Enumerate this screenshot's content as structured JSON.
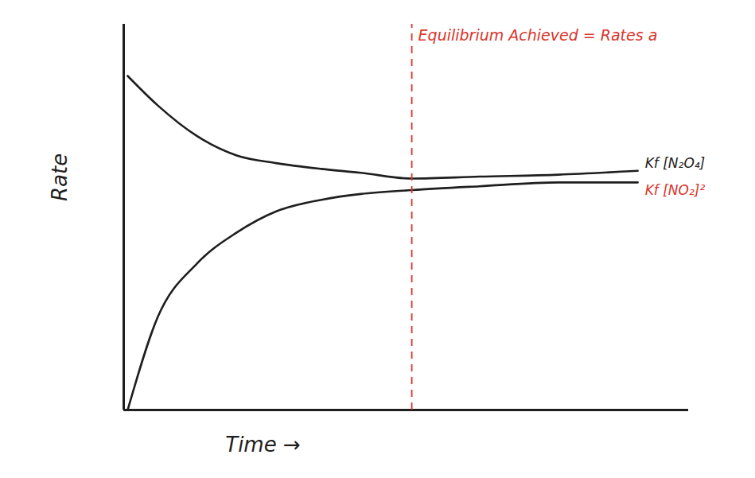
{
  "chart_data": {
    "type": "line",
    "xlabel": "Time →",
    "ylabel": "Rate",
    "x": [
      0.07,
      0.6,
      1.3,
      2.0,
      2.7,
      3.5,
      4.2,
      5.1,
      6.3,
      7.7,
      9.1
    ],
    "series": [
      {
        "color": "#1e1e1e",
        "line_style": "solid",
        "values": [
          8.66,
          7.9,
          7.1,
          6.6,
          6.4,
          6.25,
          6.15,
          6.0,
          6.05,
          6.1,
          6.2
        ]
      },
      {
        "color": "#1e1e1e",
        "line_style": "solid",
        "values": [
          0,
          2.4,
          3.8,
          4.6,
          5.15,
          5.45,
          5.6,
          5.7,
          5.8,
          5.9,
          5.9
        ]
      }
    ],
    "xlim": [
      0,
      10
    ],
    "ylim": [
      0,
      10
    ],
    "xticks": [],
    "yticks": [],
    "tick_labels": false,
    "annotations": [
      {
        "type": "vline",
        "x": 5.1,
        "y": 9.7,
        "text": "Equilibrium Achieved = Rates a",
        "color": "#d9342b",
        "line_style": "dashed"
      },
      {
        "type": "text",
        "text": "Kf [N₂O₄]",
        "x": 9.2,
        "y": 6.4,
        "color": "#1e1e1e"
      },
      {
        "type": "text",
        "text": "Kf [NO₂]²",
        "x": 9.2,
        "y": 5.7,
        "color": "#d9342b"
      }
    ]
  }
}
